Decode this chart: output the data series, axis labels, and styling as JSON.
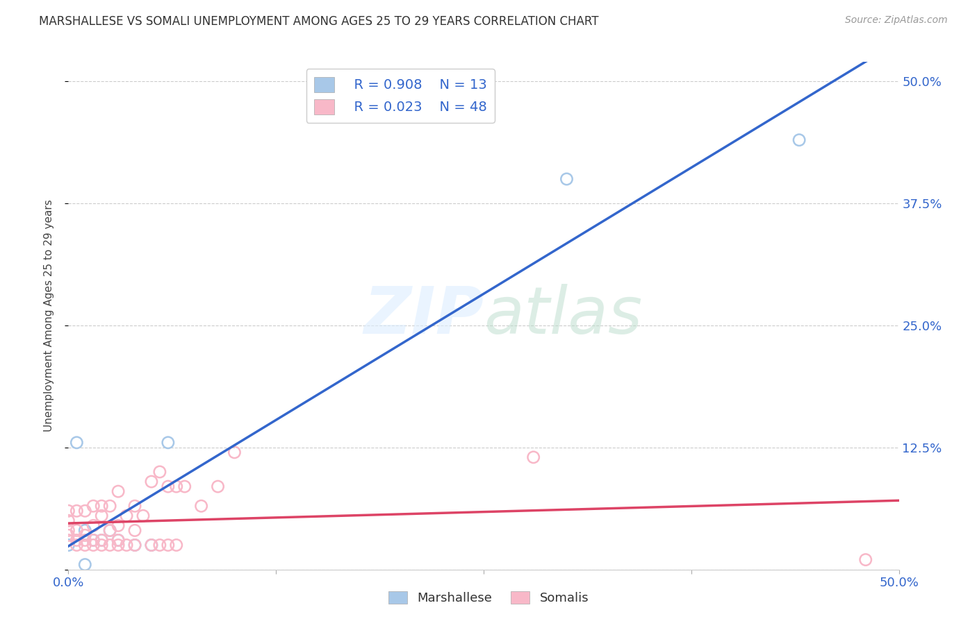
{
  "title": "MARSHALLESE VS SOMALI UNEMPLOYMENT AMONG AGES 25 TO 29 YEARS CORRELATION CHART",
  "source": "Source: ZipAtlas.com",
  "ylabel": "Unemployment Among Ages 25 to 29 years",
  "xlim": [
    0.0,
    0.5
  ],
  "ylim": [
    0.0,
    0.52
  ],
  "marshallese_color": "#a8c8e8",
  "somali_color": "#f8b8c8",
  "marshallese_line_color": "#3366cc",
  "somali_line_color": "#dd4466",
  "watermark": "ZIPatlas",
  "marshallese_R": 0.908,
  "marshallese_N": 13,
  "somali_R": 0.023,
  "somali_N": 48,
  "marshallese_x": [
    0.0,
    0.005,
    0.01,
    0.01,
    0.015,
    0.02,
    0.025,
    0.03,
    0.04,
    0.05,
    0.06,
    0.3,
    0.44
  ],
  "marshallese_y": [
    0.025,
    0.13,
    0.005,
    0.04,
    0.03,
    0.03,
    0.04,
    0.03,
    0.025,
    0.025,
    0.13,
    0.4,
    0.44
  ],
  "somali_x": [
    0.0,
    0.0,
    0.0,
    0.0,
    0.0,
    0.005,
    0.005,
    0.005,
    0.005,
    0.01,
    0.01,
    0.01,
    0.01,
    0.015,
    0.015,
    0.015,
    0.015,
    0.02,
    0.02,
    0.02,
    0.02,
    0.025,
    0.025,
    0.025,
    0.03,
    0.03,
    0.03,
    0.03,
    0.035,
    0.035,
    0.04,
    0.04,
    0.04,
    0.045,
    0.05,
    0.05,
    0.055,
    0.055,
    0.06,
    0.06,
    0.065,
    0.065,
    0.07,
    0.08,
    0.09,
    0.1,
    0.28,
    0.48
  ],
  "somali_y": [
    0.03,
    0.035,
    0.04,
    0.05,
    0.06,
    0.025,
    0.03,
    0.04,
    0.06,
    0.025,
    0.03,
    0.035,
    0.06,
    0.025,
    0.03,
    0.045,
    0.065,
    0.025,
    0.03,
    0.055,
    0.065,
    0.025,
    0.04,
    0.065,
    0.025,
    0.03,
    0.045,
    0.08,
    0.025,
    0.055,
    0.025,
    0.04,
    0.065,
    0.055,
    0.025,
    0.09,
    0.025,
    0.1,
    0.025,
    0.085,
    0.025,
    0.085,
    0.085,
    0.065,
    0.085,
    0.12,
    0.115,
    0.01
  ],
  "yticks": [
    0.0,
    0.125,
    0.25,
    0.375,
    0.5
  ],
  "ytick_labels_right": [
    "",
    "12.5%",
    "25.0%",
    "37.5%",
    "50.0%"
  ],
  "xticks": [
    0.0,
    0.125,
    0.25,
    0.375,
    0.5
  ],
  "title_fontsize": 12,
  "axis_label_fontsize": 13,
  "tick_fontsize": 13
}
